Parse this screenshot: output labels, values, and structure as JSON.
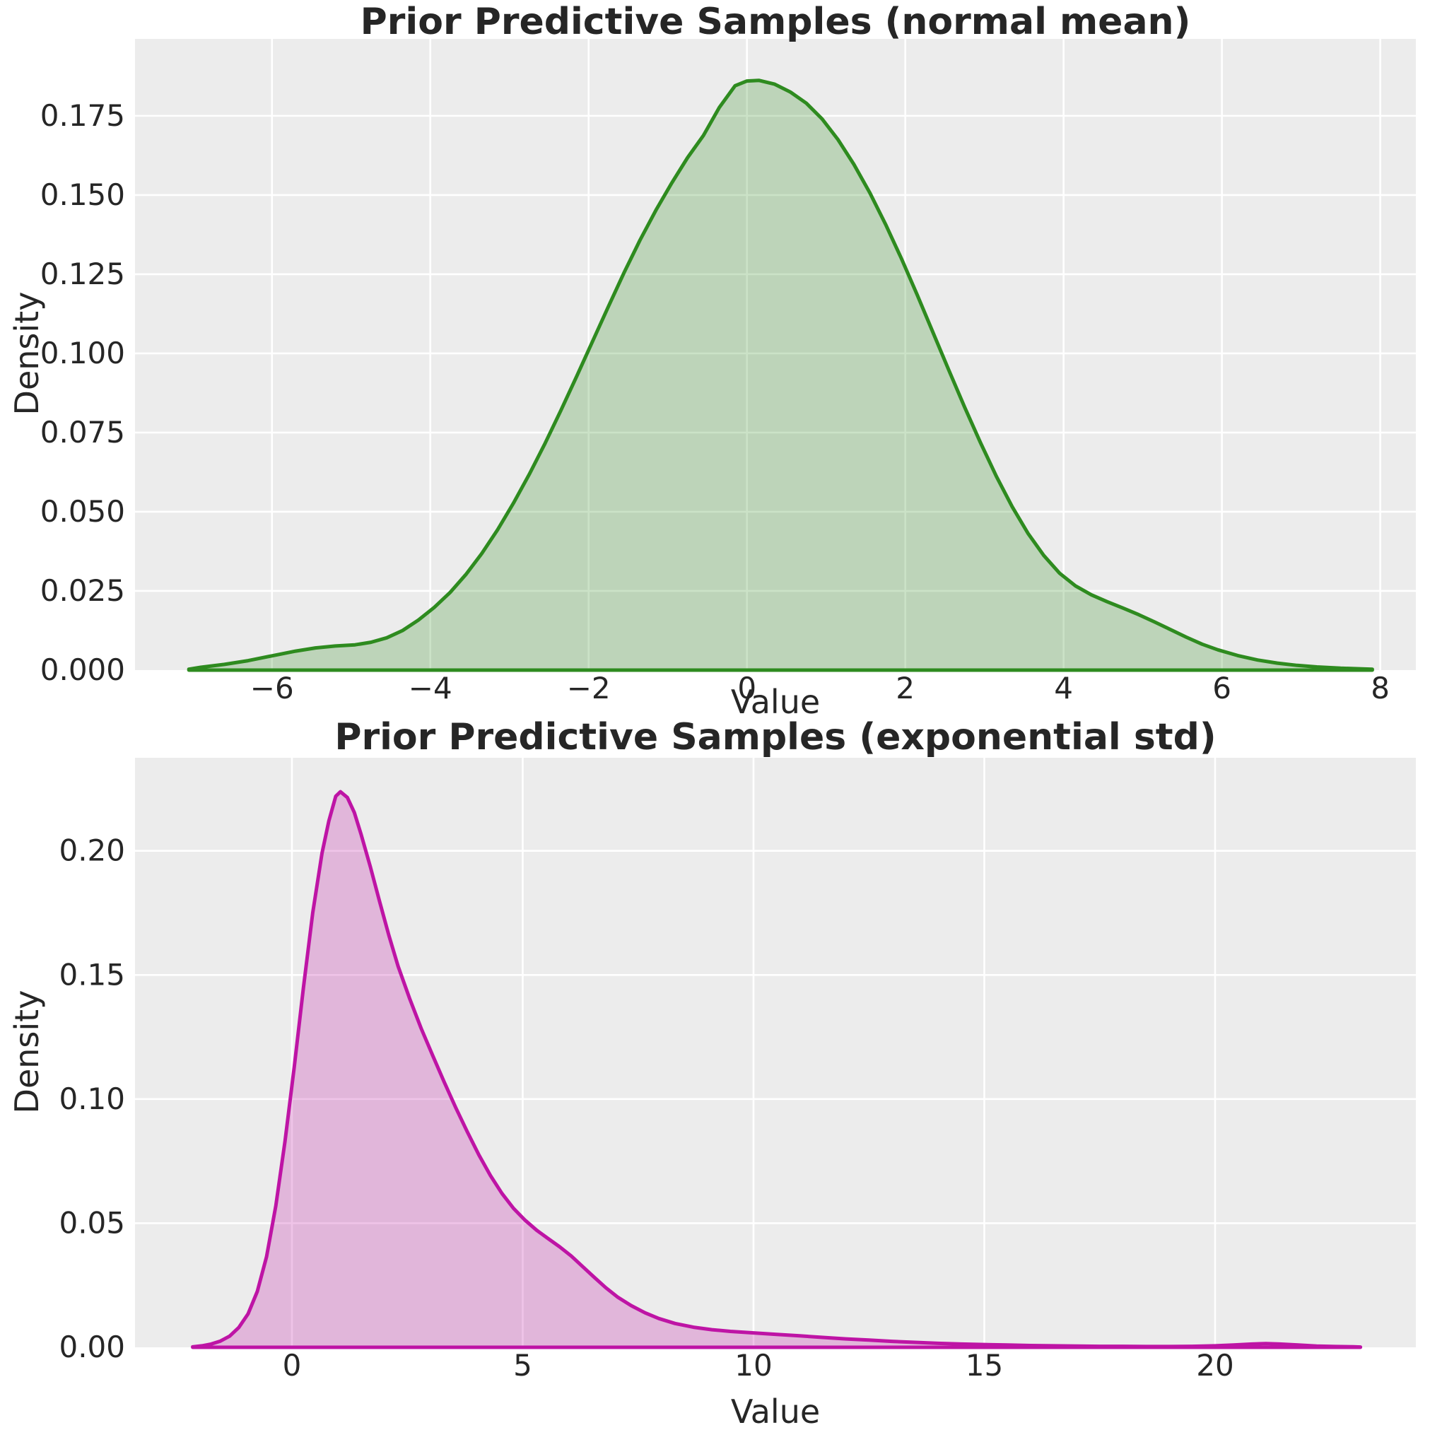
{
  "figure": {
    "background": "#ffffff",
    "axes_background": "#ececec",
    "grid_color": "#ffffff",
    "text_color": "#262626"
  },
  "chart_data": [
    {
      "type": "area",
      "kind": "kde-density",
      "title": "Prior Predictive Samples (normal mean)",
      "xlabel": "Value",
      "ylabel": "Density",
      "line_color": "#2e8b1f",
      "fill_color": "rgba(46,139,31,0.25)",
      "grid": true,
      "legend_position": "none",
      "xlim": [
        -7.73,
        8.45
      ],
      "ylim": [
        0,
        0.1993
      ],
      "xticks": [
        -6,
        -4,
        -2,
        0,
        2,
        4,
        6,
        8
      ],
      "xtick_labels": [
        "−6",
        "−4",
        "−2",
        "0",
        "2",
        "4",
        "6",
        "8"
      ],
      "yticks": [
        0,
        0.025,
        0.05,
        0.075,
        0.1,
        0.125,
        0.15,
        0.175
      ],
      "ytick_labels": [
        "0.000",
        "0.025",
        "0.050",
        "0.075",
        "0.100",
        "0.125",
        "0.150",
        "0.175"
      ],
      "points": [
        [
          -7.05,
          0.0003
        ],
        [
          -6.9,
          0.0009
        ],
        [
          -6.6,
          0.0018
        ],
        [
          -6.3,
          0.003
        ],
        [
          -6.0,
          0.0045
        ],
        [
          -5.7,
          0.006
        ],
        [
          -5.45,
          0.007
        ],
        [
          -5.2,
          0.0076
        ],
        [
          -4.95,
          0.008
        ],
        [
          -4.75,
          0.0088
        ],
        [
          -4.55,
          0.0102
        ],
        [
          -4.35,
          0.0125
        ],
        [
          -4.15,
          0.0158
        ],
        [
          -3.95,
          0.0198
        ],
        [
          -3.75,
          0.0245
        ],
        [
          -3.55,
          0.0302
        ],
        [
          -3.35,
          0.0368
        ],
        [
          -3.15,
          0.0443
        ],
        [
          -2.95,
          0.0527
        ],
        [
          -2.75,
          0.0618
        ],
        [
          -2.55,
          0.0716
        ],
        [
          -2.35,
          0.082
        ],
        [
          -2.15,
          0.0928
        ],
        [
          -1.95,
          0.1038
        ],
        [
          -1.75,
          0.1148
        ],
        [
          -1.55,
          0.1256
        ],
        [
          -1.35,
          0.1358
        ],
        [
          -1.15,
          0.1452
        ],
        [
          -0.95,
          0.1538
        ],
        [
          -0.75,
          0.1618
        ],
        [
          -0.55,
          0.1688
        ],
        [
          -0.35,
          0.1776
        ],
        [
          -0.15,
          0.1845
        ],
        [
          0.0,
          0.186
        ],
        [
          0.15,
          0.1862
        ],
        [
          0.35,
          0.185
        ],
        [
          0.55,
          0.1825
        ],
        [
          0.75,
          0.179
        ],
        [
          0.95,
          0.174
        ],
        [
          1.15,
          0.1675
        ],
        [
          1.35,
          0.1597
        ],
        [
          1.55,
          0.1508
        ],
        [
          1.75,
          0.1408
        ],
        [
          1.95,
          0.13
        ],
        [
          2.15,
          0.1185
        ],
        [
          2.35,
          0.1066
        ],
        [
          2.55,
          0.0947
        ],
        [
          2.75,
          0.083
        ],
        [
          2.95,
          0.0718
        ],
        [
          3.15,
          0.0612
        ],
        [
          3.35,
          0.0516
        ],
        [
          3.55,
          0.0432
        ],
        [
          3.75,
          0.0362
        ],
        [
          3.95,
          0.0306
        ],
        [
          4.15,
          0.0266
        ],
        [
          4.35,
          0.0238
        ],
        [
          4.55,
          0.0216
        ],
        [
          4.75,
          0.0196
        ],
        [
          4.95,
          0.0175
        ],
        [
          5.15,
          0.0152
        ],
        [
          5.35,
          0.0128
        ],
        [
          5.55,
          0.0104
        ],
        [
          5.75,
          0.0082
        ],
        [
          5.95,
          0.0064
        ],
        [
          6.2,
          0.0046
        ],
        [
          6.45,
          0.0032
        ],
        [
          6.7,
          0.0022
        ],
        [
          6.95,
          0.0015
        ],
        [
          7.2,
          0.001
        ],
        [
          7.5,
          0.0006
        ],
        [
          7.9,
          0.0003
        ]
      ]
    },
    {
      "type": "area",
      "kind": "kde-density",
      "title": "Prior Predictive Samples (exponential std)",
      "xlabel": "Value",
      "ylabel": "Density",
      "line_color": "#be14a5",
      "fill_color": "rgba(190,20,165,0.25)",
      "grid": true,
      "legend_position": "none",
      "xlim": [
        -3.4,
        24.35
      ],
      "ylim": [
        0,
        0.2375
      ],
      "xticks": [
        0,
        5,
        10,
        15,
        20
      ],
      "xtick_labels": [
        "0",
        "5",
        "10",
        "15",
        "20"
      ],
      "yticks": [
        0,
        0.05,
        0.1,
        0.15,
        0.2
      ],
      "ytick_labels": [
        "0.00",
        "0.05",
        "0.10",
        "0.15",
        "0.20"
      ],
      "points": [
        [
          -2.15,
          0.0002
        ],
        [
          -1.95,
          0.0006
        ],
        [
          -1.75,
          0.0013
        ],
        [
          -1.55,
          0.0025
        ],
        [
          -1.35,
          0.0045
        ],
        [
          -1.15,
          0.008
        ],
        [
          -0.95,
          0.0135
        ],
        [
          -0.75,
          0.0225
        ],
        [
          -0.55,
          0.0365
        ],
        [
          -0.35,
          0.057
        ],
        [
          -0.15,
          0.083
        ],
        [
          0.05,
          0.113
        ],
        [
          0.25,
          0.145
        ],
        [
          0.45,
          0.175
        ],
        [
          0.65,
          0.199
        ],
        [
          0.8,
          0.212
        ],
        [
          0.95,
          0.222
        ],
        [
          1.05,
          0.2238
        ],
        [
          1.2,
          0.2215
        ],
        [
          1.35,
          0.2155
        ],
        [
          1.5,
          0.2065
        ],
        [
          1.7,
          0.1935
        ],
        [
          1.9,
          0.1795
        ],
        [
          2.1,
          0.166
        ],
        [
          2.3,
          0.1535
        ],
        [
          2.55,
          0.1405
        ],
        [
          2.8,
          0.1285
        ],
        [
          3.05,
          0.1175
        ],
        [
          3.3,
          0.1068
        ],
        [
          3.55,
          0.0965
        ],
        [
          3.8,
          0.0868
        ],
        [
          4.05,
          0.0775
        ],
        [
          4.3,
          0.0692
        ],
        [
          4.55,
          0.062
        ],
        [
          4.8,
          0.056
        ],
        [
          5.05,
          0.0512
        ],
        [
          5.3,
          0.0472
        ],
        [
          5.55,
          0.0438
        ],
        [
          5.8,
          0.0405
        ],
        [
          6.05,
          0.0368
        ],
        [
          6.3,
          0.0325
        ],
        [
          6.55,
          0.0282
        ],
        [
          6.8,
          0.024
        ],
        [
          7.05,
          0.0203
        ],
        [
          7.35,
          0.0168
        ],
        [
          7.65,
          0.0139
        ],
        [
          7.95,
          0.0116
        ],
        [
          8.3,
          0.0096
        ],
        [
          8.7,
          0.0081
        ],
        [
          9.1,
          0.0071
        ],
        [
          9.5,
          0.0064
        ],
        [
          10.0,
          0.0058
        ],
        [
          10.5,
          0.0052
        ],
        [
          11.0,
          0.0046
        ],
        [
          11.5,
          0.004
        ],
        [
          12.0,
          0.0034
        ],
        [
          12.5,
          0.0029
        ],
        [
          13.0,
          0.0024
        ],
        [
          13.5,
          0.002
        ],
        [
          14.0,
          0.0016
        ],
        [
          14.5,
          0.0013
        ],
        [
          15.0,
          0.0011
        ],
        [
          15.5,
          0.0009
        ],
        [
          16.0,
          0.0007
        ],
        [
          16.5,
          0.0006
        ],
        [
          17.0,
          0.0005
        ],
        [
          17.5,
          0.0004
        ],
        [
          18.0,
          0.0004
        ],
        [
          18.5,
          0.0003
        ],
        [
          19.0,
          0.0003
        ],
        [
          19.5,
          0.0004
        ],
        [
          20.0,
          0.0006
        ],
        [
          20.4,
          0.0009
        ],
        [
          20.8,
          0.0013
        ],
        [
          21.1,
          0.0015
        ],
        [
          21.4,
          0.0013
        ],
        [
          21.8,
          0.0009
        ],
        [
          22.2,
          0.0005
        ],
        [
          22.6,
          0.0003
        ],
        [
          23.0,
          0.0002
        ],
        [
          23.15,
          0.0001
        ]
      ]
    }
  ]
}
